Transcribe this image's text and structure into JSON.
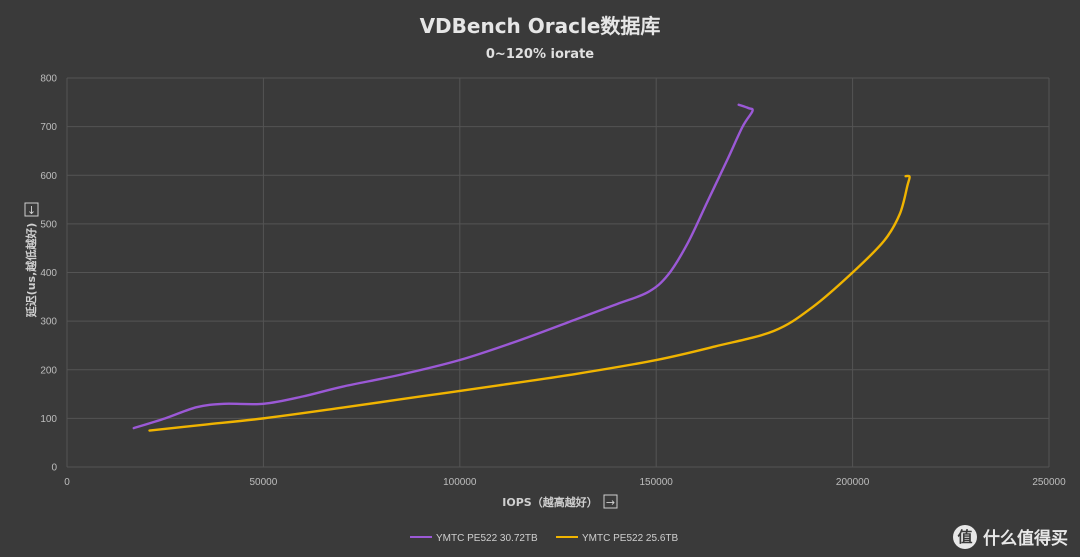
{
  "chart_data": {
    "type": "line",
    "title": "VDBench Oracle数据库",
    "subtitle": "0~120% iorate",
    "xlabel": "IOPS（越高越好）",
    "xlabel_arrow": "→",
    "ylabel": "延迟(us,越低越好)",
    "ylabel_arrow": "↓",
    "xlim": [
      0,
      250000
    ],
    "ylim": [
      0,
      800
    ],
    "xticks": [
      0,
      50000,
      100000,
      150000,
      200000,
      250000
    ],
    "yticks": [
      0,
      100,
      200,
      300,
      400,
      500,
      600,
      700,
      800
    ],
    "grid": true,
    "legend_position": "bottom-center",
    "series": [
      {
        "name": "YMTC PE522 30.72TB",
        "color": "#9b59d6",
        "x": [
          17000,
          25000,
          33000,
          40000,
          50000,
          60000,
          70000,
          85000,
          100000,
          115000,
          130000,
          140000,
          148000,
          153000,
          158000,
          163000,
          168000,
          172000,
          174500,
          173500,
          171000
        ],
        "y": [
          80,
          100,
          123,
          130,
          130,
          145,
          165,
          190,
          220,
          260,
          305,
          335,
          360,
          395,
          460,
          545,
          630,
          700,
          732,
          738,
          745
        ]
      },
      {
        "name": "YMTC PE522 25.6TB",
        "color": "#f0b400",
        "x": [
          21000,
          35000,
          50000,
          70000,
          90000,
          110000,
          130000,
          150000,
          165000,
          180000,
          190000,
          200000,
          208000,
          212000,
          214000,
          214500,
          213500
        ],
        "y": [
          75,
          87,
          100,
          122,
          145,
          168,
          192,
          220,
          248,
          280,
          330,
          400,
          465,
          520,
          580,
          597,
          598
        ]
      }
    ]
  },
  "watermark": {
    "logo_char": "值",
    "text": "什么值得买"
  }
}
